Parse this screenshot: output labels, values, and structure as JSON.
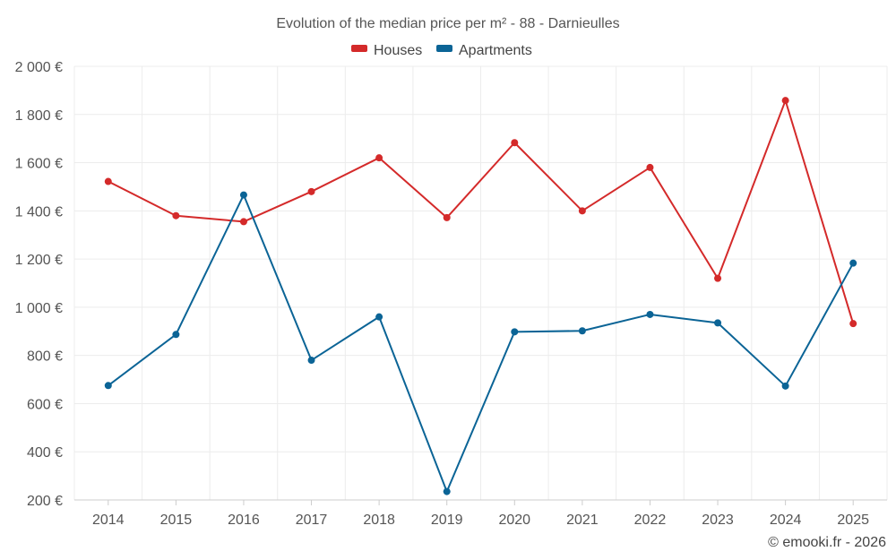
{
  "chart_data": {
    "type": "line",
    "title": "Evolution of the median price per m² - 88 - Darnieulles",
    "categories": [
      "2014",
      "2015",
      "2016",
      "2017",
      "2018",
      "2019",
      "2020",
      "2021",
      "2022",
      "2023",
      "2024",
      "2025"
    ],
    "series": [
      {
        "name": "Houses",
        "color": "#d42a2a",
        "values": [
          1522,
          1380,
          1355,
          1480,
          1620,
          1372,
          1683,
          1400,
          1580,
          1120,
          1858,
          932
        ]
      },
      {
        "name": "Apartments",
        "color": "#0b6496",
        "values": [
          675,
          887,
          1466,
          780,
          960,
          235,
          898,
          902,
          970,
          935,
          673,
          1183
        ]
      }
    ],
    "ylim": [
      200,
      2000
    ],
    "y_ticks": [
      200,
      400,
      600,
      800,
      1000,
      1200,
      1400,
      1600,
      1800,
      2000
    ],
    "y_tick_labels": [
      "200 €",
      "400 €",
      "600 €",
      "800 €",
      "1 000 €",
      "1 200 €",
      "1 400 €",
      "1 600 €",
      "1 800 €",
      "2 000 €"
    ],
    "xlabel": "",
    "ylabel": "",
    "grid": true,
    "legend_position": "top-center"
  },
  "credit": "© emooki.fr - 2026"
}
